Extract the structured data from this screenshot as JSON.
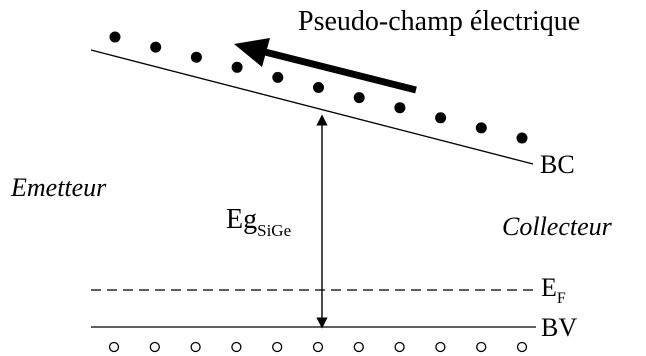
{
  "labels": {
    "title": "Pseudo-champ électrique",
    "conduction_band": "BC",
    "valence_band": "BV",
    "fermi_level": "E",
    "fermi_subscript": "F",
    "emitter": "Emetteur",
    "collector": "Collecteur",
    "bandgap": "Eg",
    "bandgap_subscript": "SiGe"
  },
  "electrons": {
    "count": 11,
    "symbol": "filled-dot"
  },
  "holes": {
    "count": 11,
    "symbol": "open-circle"
  },
  "colors": {
    "ink": "#000000",
    "background": "#ffffff"
  }
}
